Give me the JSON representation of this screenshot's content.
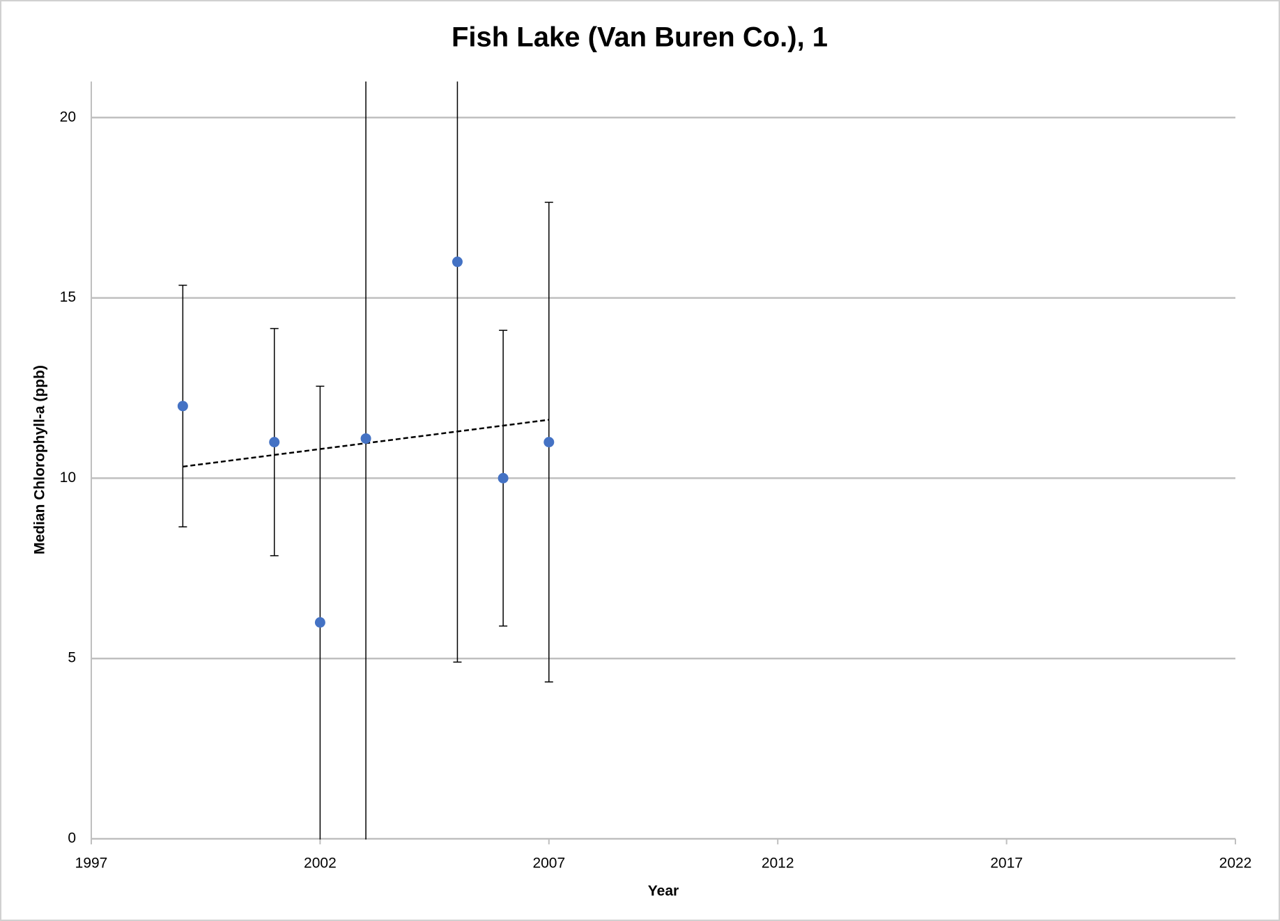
{
  "chart_data": {
    "type": "scatter",
    "title": "Fish Lake (Van Buren Co.), 1",
    "x_label": "Year",
    "y_label": "Median Chlorophyll-a (ppb)",
    "series": [
      {
        "color": "#4472c4",
        "x": [
          1999,
          2001,
          2002,
          2003,
          2005,
          2006,
          2007
        ],
        "values": [
          12,
          11,
          6,
          11.1,
          16,
          10,
          11
        ],
        "errors": [
          3.35,
          3.15,
          6.55,
          12,
          11.1,
          4.1,
          6.65
        ]
      }
    ],
    "trendline": {
      "x": [
        1999,
        2007
      ],
      "values": [
        10.32,
        11.62
      ],
      "color": "#000000"
    },
    "xlim": [
      1997,
      2022
    ],
    "xticks": [
      1997,
      2002,
      2007,
      2012,
      2017,
      2022
    ],
    "ylim": [
      0,
      21
    ],
    "yticks": [
      0,
      5,
      10,
      15,
      20
    ],
    "grid": true
  }
}
